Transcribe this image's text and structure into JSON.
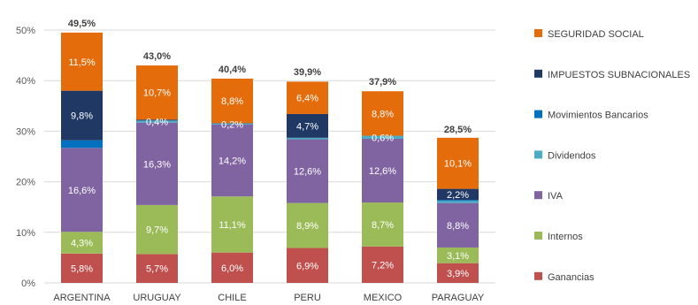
{
  "chart_data": {
    "type": "bar",
    "stacked": true,
    "ylim": [
      0,
      50
    ],
    "ytick_values": [
      0,
      10,
      20,
      30,
      40,
      50
    ],
    "ytick_labels": [
      "0%",
      "10%",
      "20%",
      "30%",
      "40%",
      "50%"
    ],
    "grid": true,
    "legend_position": "right",
    "categories": [
      "ARGENTINA",
      "URUGUAY",
      "CHILE",
      "PERU",
      "MEXICO",
      "PARAGUAY"
    ],
    "totals": [
      49.5,
      43.0,
      40.4,
      39.9,
      37.9,
      28.5
    ],
    "total_labels": [
      "49,5%",
      "43,0%",
      "40,4%",
      "39,9%",
      "37,9%",
      "28,5%"
    ],
    "series": [
      {
        "name": "Ganancias",
        "color": "#c0504d",
        "values": [
          5.8,
          5.7,
          6.0,
          6.9,
          7.2,
          3.9
        ],
        "labels": [
          "5,8%",
          "5,7%",
          "6,0%",
          "6,9%",
          "7,2%",
          "3,9%"
        ]
      },
      {
        "name": "Internos",
        "color": "#9bbb59",
        "values": [
          4.3,
          9.7,
          11.1,
          8.9,
          8.7,
          3.1
        ],
        "labels": [
          "4,3%",
          "9,7%",
          "11,1%",
          "8,9%",
          "8,7%",
          "3,1%"
        ]
      },
      {
        "name": "IVA",
        "color": "#8064a2",
        "values": [
          16.6,
          16.3,
          14.2,
          12.6,
          12.6,
          8.8
        ],
        "labels": [
          "16,6%",
          "16,3%",
          "14,2%",
          "12,6%",
          "12,6%",
          "8,8%"
        ]
      },
      {
        "name": "Dividendos",
        "color": "#4bacc6",
        "values": [
          0.0,
          0.4,
          0.2,
          0.3,
          0.6,
          0.4
        ],
        "labels": [
          "",
          "0,4%",
          "0,2%",
          "",
          "0,6%",
          ""
        ]
      },
      {
        "name": "Movimientos Bancarios",
        "color": "#0070c0",
        "values": [
          1.5,
          0.0,
          0.0,
          0.0,
          0.0,
          0.2
        ],
        "labels": [
          "",
          "",
          "",
          "",
          "",
          ""
        ]
      },
      {
        "name": "IMPUESTOS SUBNACIONALES",
        "color": "#1f3864",
        "values": [
          9.8,
          0.2,
          0.1,
          4.7,
          0.0,
          2.2
        ],
        "labels": [
          "9,8%",
          "",
          "",
          "4,7%",
          "",
          "2,2%"
        ]
      },
      {
        "name": "SEGURIDAD SOCIAL",
        "color": "#e46c0a",
        "values": [
          11.5,
          10.7,
          8.8,
          6.4,
          8.8,
          10.1
        ],
        "labels": [
          "11,5%",
          "10,7%",
          "8,8%",
          "6,4%",
          "8,8%",
          "10,1%"
        ]
      }
    ],
    "legend_order": [
      "SEGURIDAD SOCIAL",
      "IMPUESTOS SUBNACIONALES",
      "Movimientos Bancarios",
      "Dividendos",
      "IVA",
      "Internos",
      "Ganancias"
    ]
  }
}
